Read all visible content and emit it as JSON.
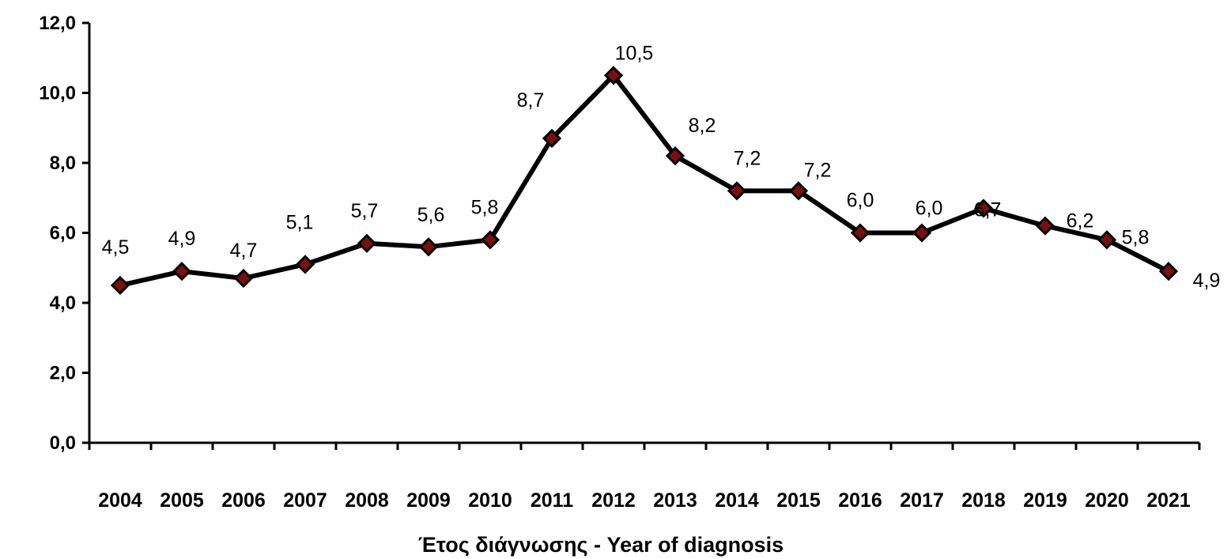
{
  "chart_data": {
    "type": "line",
    "title": "",
    "xlabel": "Έτος διάγνωσης - Year of diagnosis",
    "ylabel": "",
    "categories": [
      "2004",
      "2005",
      "2006",
      "2007",
      "2008",
      "2009",
      "2010",
      "2011",
      "2012",
      "2013",
      "2014",
      "2015",
      "2016",
      "2017",
      "2018",
      "2019",
      "2020",
      "2021"
    ],
    "series": [
      {
        "values": [
          4.5,
          4.9,
          4.7,
          5.1,
          5.7,
          5.6,
          5.8,
          8.7,
          10.5,
          8.2,
          7.2,
          7.2,
          6.0,
          6.0,
          6.7,
          6.2,
          5.8,
          4.9
        ],
        "data_labels": [
          "4,5",
          "4,9",
          "4,7",
          "5,1",
          "5,7",
          "5,6",
          "5,8",
          "8,7",
          "10,5",
          "8,2",
          "7,2",
          "7,2",
          "6,0",
          "6,0",
          "6,7",
          "6,2",
          "5,8",
          "4,9"
        ]
      }
    ],
    "ylim": [
      0,
      12
    ],
    "y_ticks": [
      0,
      2,
      4,
      6,
      8,
      10,
      12
    ],
    "y_tick_labels": [
      "0,0",
      "2,0",
      "4,0",
      "6,0",
      "8,0",
      "10,0",
      "12,0"
    ],
    "grid": false,
    "legend": "none",
    "line_color": "#000000",
    "marker": "diamond",
    "marker_fill": "#7a0f0f",
    "marker_edge": "#000000"
  }
}
